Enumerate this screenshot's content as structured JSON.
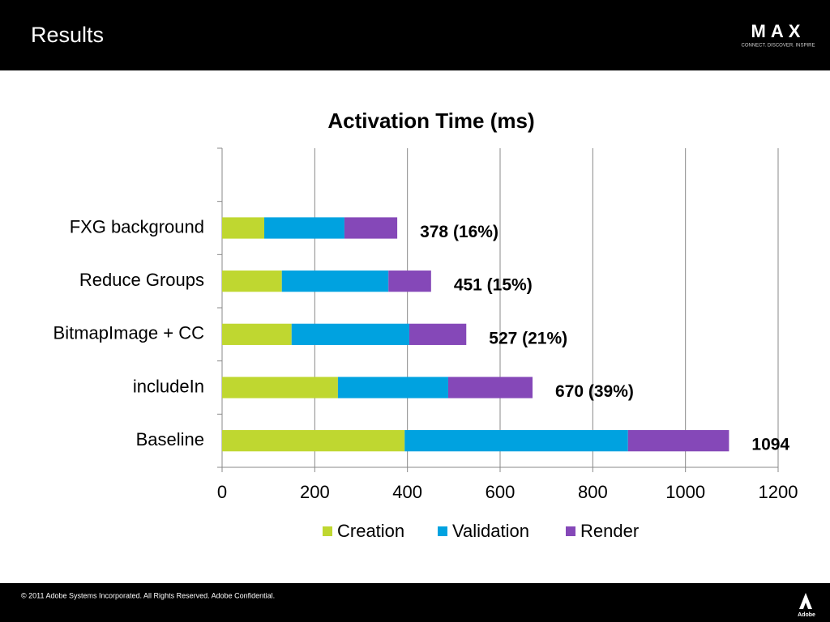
{
  "slide": {
    "title": "Results",
    "logo": "MAX",
    "tagline": "CONNECT. DISCOVER. INSPIRE",
    "footer": "© 2011 Adobe Systems Incorporated.  All Rights Reserved.  Adobe Confidential.",
    "brand": "Adobe"
  },
  "chart_data": {
    "type": "stacked_bar_horizontal",
    "title": "Activation Time (ms)",
    "categories": [
      null,
      "FXG background",
      "Reduce Groups",
      "BitmapImage + CC",
      "includeIn",
      "Baseline"
    ],
    "series": [
      {
        "name": "Creation",
        "color": "#bfd730",
        "values": [
          null,
          91,
          129,
          150,
          250,
          394
        ]
      },
      {
        "name": "Validation",
        "color": "#00a2e0",
        "values": [
          null,
          173,
          230,
          254,
          238,
          482
        ]
      },
      {
        "name": "Render",
        "color": "#8548b8",
        "values": [
          null,
          114,
          92,
          123,
          182,
          218
        ]
      }
    ],
    "totals": [
      null,
      378,
      451,
      527,
      670,
      1094
    ],
    "total_labels": [
      null,
      "378 (16%)",
      "451 (15%)",
      "527 (21%)",
      "670 (39%)",
      "1094"
    ],
    "xlim": [
      0,
      1200
    ],
    "xticks": [
      0,
      200,
      400,
      600,
      800,
      1000,
      1200
    ],
    "grid": true,
    "legend": "bottom"
  }
}
